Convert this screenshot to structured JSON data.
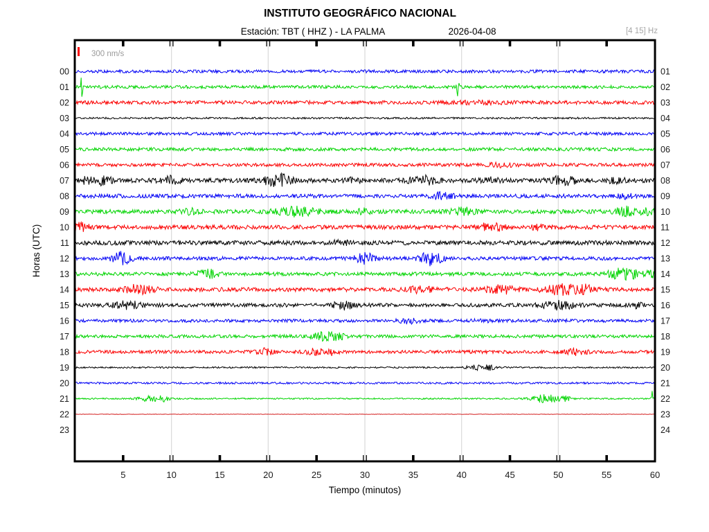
{
  "header": {
    "title": "INSTITUTO GEOGRÁFICO NACIONAL",
    "station": "Estación:  TBT ( HHZ ) - LA PALMA",
    "date": "2026-04-08",
    "filter": "[4 15] Hz"
  },
  "legend": {
    "label": "300 nm/s"
  },
  "axes": {
    "x_title": "Tiempo (minutos)",
    "y_title": "Horas (UTC)",
    "x_range": [
      0,
      60
    ],
    "x_ticks": [
      5,
      10,
      15,
      20,
      25,
      30,
      35,
      40,
      45,
      50,
      55,
      60
    ],
    "x_gridlines": [
      10,
      20,
      30,
      40,
      50
    ],
    "grid": true
  },
  "colors": {
    "blue": "#0000f5",
    "green": "#00d400",
    "red": "#fb0000",
    "black": "#000000",
    "flatred": "#d42020",
    "grid": "#d9d9d9",
    "frame": "#000000"
  },
  "chart_data": {
    "type": "line",
    "subtype": "helicorder-seismogram",
    "title": "INSTITUTO GEOGRÁFICO NACIONAL",
    "xlabel": "Tiempo (minutos)",
    "ylabel": "Horas (UTC)",
    "xlim": [
      0,
      60
    ],
    "amplitude_scale": "300 nm/s",
    "rows": [
      {
        "left": "00",
        "right": "01",
        "color": "blue",
        "base": 2.2,
        "events": []
      },
      {
        "left": "01",
        "right": "02",
        "color": "green",
        "base": 2.2,
        "events": [
          [
            0.7,
            16,
            0.12
          ],
          [
            39.6,
            12,
            0.12
          ]
        ]
      },
      {
        "left": "02",
        "right": "03",
        "color": "red",
        "base": 2.6,
        "events": [
          [
            42,
            1.5,
            3
          ]
        ]
      },
      {
        "left": "03",
        "right": "04",
        "color": "black",
        "base": 1.3,
        "events": []
      },
      {
        "left": "04",
        "right": "05",
        "color": "blue",
        "base": 2.2,
        "events": []
      },
      {
        "left": "05",
        "right": "06",
        "color": "green",
        "base": 2.4,
        "events": []
      },
      {
        "left": "06",
        "right": "07",
        "color": "red",
        "base": 2.4,
        "events": [
          [
            44,
            2.5,
            1.5
          ]
        ]
      },
      {
        "left": "07",
        "right": "08",
        "color": "black",
        "base": 3.2,
        "events": [
          [
            1.5,
            4,
            1
          ],
          [
            3,
            5,
            0.8
          ],
          [
            10,
            5,
            1
          ],
          [
            20.5,
            6,
            1.2
          ],
          [
            21.8,
            5,
            0.8
          ],
          [
            29,
            3,
            0.8
          ],
          [
            36,
            5,
            1.5
          ],
          [
            43,
            3,
            0.8
          ],
          [
            50.5,
            5,
            1.5
          ],
          [
            56,
            3,
            1
          ]
        ]
      },
      {
        "left": "08",
        "right": "09",
        "color": "blue",
        "base": 2.8,
        "events": [
          [
            38,
            4,
            1.2
          ],
          [
            57,
            3,
            0.8
          ]
        ]
      },
      {
        "left": "09",
        "right": "10",
        "color": "green",
        "base": 3.0,
        "events": [
          [
            12,
            3,
            1
          ],
          [
            22.8,
            6,
            2
          ],
          [
            30,
            3,
            0.8
          ],
          [
            40,
            5,
            1.2
          ],
          [
            57,
            6,
            1.2
          ],
          [
            59.5,
            4,
            0.8
          ]
        ]
      },
      {
        "left": "10",
        "right": "11",
        "color": "red",
        "base": 3.0,
        "events": [
          [
            0.6,
            7,
            0.8
          ],
          [
            43,
            6,
            1.2
          ],
          [
            48,
            3,
            0.8
          ]
        ]
      },
      {
        "left": "11",
        "right": "12",
        "color": "black",
        "base": 3.2,
        "events": [
          [
            27.5,
            3,
            0.8
          ]
        ]
      },
      {
        "left": "12",
        "right": "13",
        "color": "blue",
        "base": 2.6,
        "events": [
          [
            4.8,
            8,
            1
          ],
          [
            30,
            7,
            1
          ],
          [
            36.8,
            9,
            1.1
          ]
        ]
      },
      {
        "left": "13",
        "right": "14",
        "color": "green",
        "base": 2.6,
        "events": [
          [
            13.7,
            6,
            1
          ],
          [
            56.8,
            8,
            1.6
          ],
          [
            59.8,
            5,
            0.6
          ]
        ]
      },
      {
        "left": "14",
        "right": "15",
        "color": "red",
        "base": 3.0,
        "events": [
          [
            6.5,
            6,
            1.5
          ],
          [
            36,
            4,
            1.5
          ],
          [
            44,
            5,
            1.5
          ],
          [
            50.5,
            7,
            1.8
          ],
          [
            53,
            5,
            0.9
          ]
        ]
      },
      {
        "left": "15",
        "right": "16",
        "color": "black",
        "base": 2.7,
        "events": [
          [
            5.5,
            5,
            1.5
          ],
          [
            27.8,
            7,
            0.9
          ],
          [
            50,
            5,
            1.8
          ],
          [
            58,
            3,
            0.8
          ]
        ]
      },
      {
        "left": "16",
        "right": "17",
        "color": "blue",
        "base": 2.3,
        "events": [
          [
            34.5,
            3,
            1.2
          ],
          [
            42,
            2,
            0.8
          ]
        ]
      },
      {
        "left": "17",
        "right": "18",
        "color": "green",
        "base": 2.3,
        "events": [
          [
            25.8,
            5,
            1.2
          ],
          [
            27.2,
            4,
            0.7
          ]
        ]
      },
      {
        "left": "18",
        "right": "19",
        "color": "red",
        "base": 2.3,
        "events": [
          [
            19.8,
            4,
            1
          ],
          [
            25,
            4,
            1.2
          ],
          [
            26.5,
            3,
            0.7
          ],
          [
            51.8,
            4,
            1.2
          ]
        ]
      },
      {
        "left": "19",
        "right": "20",
        "color": "black",
        "base": 1.1,
        "events": [
          [
            41.8,
            3.5,
            1.2
          ],
          [
            43,
            2.5,
            0.7
          ]
        ]
      },
      {
        "left": "20",
        "right": "21",
        "color": "blue",
        "base": 1.4,
        "events": []
      },
      {
        "left": "21",
        "right": "22",
        "color": "green",
        "base": 1.0,
        "events": [
          [
            7.8,
            4,
            1.2
          ],
          [
            9.2,
            3,
            0.7
          ],
          [
            47.8,
            4,
            1
          ],
          [
            49.3,
            5,
            1.2
          ],
          [
            50.6,
            3,
            0.7
          ],
          [
            59.7,
            11,
            0.08
          ]
        ]
      },
      {
        "left": "22",
        "right": "23",
        "color": "flatred",
        "base": 0.3,
        "events": []
      },
      {
        "left": "23",
        "right": "24",
        "color": "",
        "base": 0,
        "events": []
      }
    ]
  }
}
